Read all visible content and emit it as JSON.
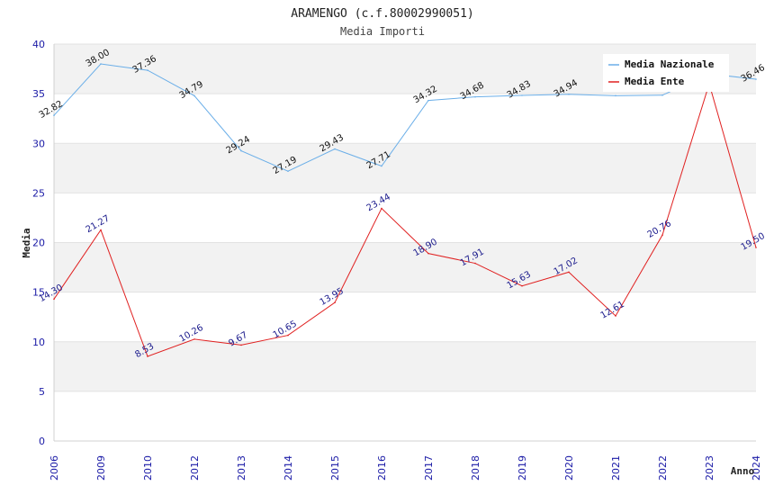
{
  "chart_data": {
    "type": "line",
    "title": "ARAMENGO (c.f.80002990051)",
    "subtitle": "Media Importi",
    "xlabel": "Anno",
    "ylabel": "Media",
    "ylim": [
      0,
      40
    ],
    "yticks": [
      0,
      5,
      10,
      15,
      20,
      25,
      30,
      35,
      40
    ],
    "categories": [
      "2006",
      "2009",
      "2010",
      "2012",
      "2013",
      "2014",
      "2015",
      "2016",
      "2017",
      "2018",
      "2019",
      "2020",
      "2021",
      "2022",
      "2023",
      "2024"
    ],
    "series": [
      {
        "name": "Media Nazionale",
        "color": "#6aaee8",
        "values": [
          32.82,
          38.0,
          37.36,
          34.79,
          29.24,
          27.19,
          29.43,
          27.71,
          34.32,
          34.68,
          34.83,
          34.94,
          34.8,
          34.85,
          37.0,
          36.46
        ],
        "labels": [
          "32.82",
          "38.00",
          "37.36",
          "34.79",
          "29.24",
          "27.19",
          "29.43",
          "27.71",
          "34.32",
          "34.68",
          "34.83",
          "34.94",
          "",
          "",
          "",
          "36.46"
        ]
      },
      {
        "name": "Media Ente",
        "color": "#e02020",
        "values": [
          14.3,
          21.27,
          8.53,
          10.26,
          9.67,
          10.65,
          13.95,
          23.44,
          18.9,
          17.91,
          15.63,
          17.02,
          12.61,
          20.76,
          36.0,
          19.5
        ],
        "labels": [
          "14.30",
          "21.27",
          "8.53",
          "10.26",
          "9.67",
          "10.65",
          "13.95",
          "23.44",
          "18.90",
          "17.91",
          "15.63",
          "17.02",
          "12.61",
          "20.76",
          "",
          "19.50"
        ]
      }
    ],
    "grid": true,
    "legend_position": "top-right"
  }
}
